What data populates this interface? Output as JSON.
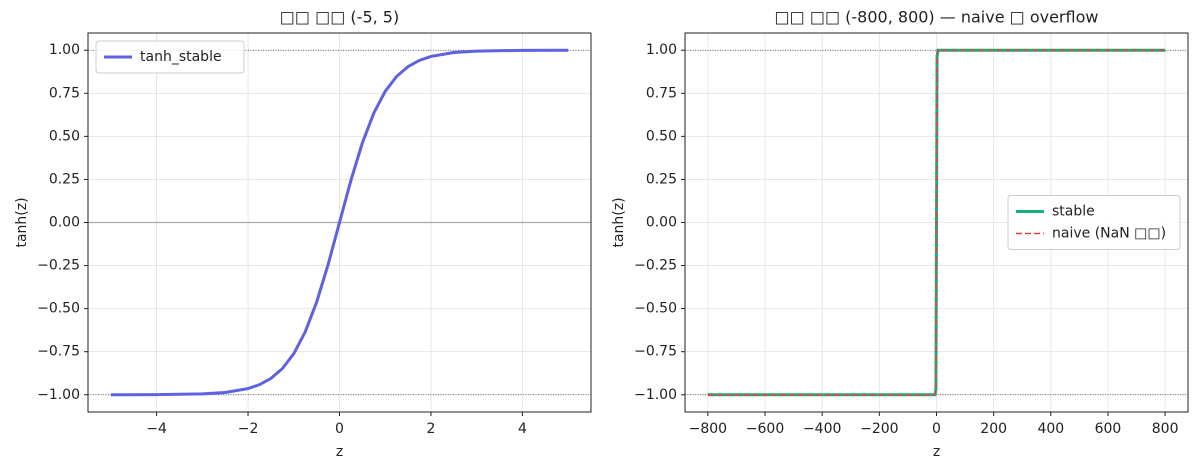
{
  "chart_data": [
    {
      "type": "line",
      "title": "□□ □□ (-5, 5)",
      "xlabel": "z",
      "ylabel": "tanh(z)",
      "x": [
        -5,
        -4,
        -3,
        -2.5,
        -2,
        -1.75,
        -1.5,
        -1.25,
        -1,
        -0.75,
        -0.5,
        -0.25,
        0,
        0.25,
        0.5,
        0.75,
        1,
        1.25,
        1.5,
        1.75,
        2,
        2.5,
        3,
        4,
        5
      ],
      "series": [
        {
          "name": "tanh_stable",
          "color": "#5d62e4",
          "linestyle": "solid",
          "values": [
            -0.9999,
            -0.9993,
            -0.9951,
            -0.9866,
            -0.964,
            -0.9414,
            -0.9051,
            -0.8483,
            -0.7616,
            -0.6351,
            -0.4621,
            -0.2449,
            0,
            0.2449,
            0.4621,
            0.6351,
            0.7616,
            0.8483,
            0.9051,
            0.9414,
            0.964,
            0.9866,
            0.9951,
            0.9993,
            0.9999
          ]
        }
      ],
      "xlim": [
        -5.5,
        5.5
      ],
      "ylim": [
        -1.1,
        1.1
      ],
      "xticks": [
        {
          "value": -4,
          "label": "−4"
        },
        {
          "value": -2,
          "label": "−2"
        },
        0,
        2,
        4
      ],
      "yticks": [
        {
          "value": -1,
          "label": "−1.00"
        },
        {
          "value": -0.75,
          "label": "−0.75"
        },
        {
          "value": -0.5,
          "label": "−0.50"
        },
        {
          "value": -0.25,
          "label": "−0.25"
        },
        {
          "value": 0,
          "label": "0.00"
        },
        {
          "value": 0.25,
          "label": "0.25"
        },
        {
          "value": 0.5,
          "label": "0.50"
        },
        {
          "value": 0.75,
          "label": "0.75"
        },
        {
          "value": 1,
          "label": "1.00"
        }
      ],
      "hlines": [
        {
          "y": 1,
          "style": "dotted"
        },
        {
          "y": -1,
          "style": "dotted"
        },
        {
          "y": 0,
          "style": "solid"
        }
      ],
      "grid": true,
      "legend": "upper left"
    },
    {
      "type": "line",
      "title": "□□ □□ (-800, 800) — naive □ overflow",
      "xlabel": "z",
      "ylabel": "tanh(z)",
      "x": [
        -800,
        -5,
        -2,
        0,
        2,
        5,
        800
      ],
      "series": [
        {
          "name": "stable",
          "color": "#17b07f",
          "linestyle": "solid",
          "values": [
            -1,
            -0.9999,
            -0.964,
            0,
            0.964,
            0.9999,
            1
          ]
        },
        {
          "name": "naive (NaN □□)",
          "color": "#e8413f",
          "linestyle": "dashed",
          "values": [
            -1,
            -0.9999,
            -0.964,
            0,
            0.964,
            0.9999,
            1
          ]
        }
      ],
      "xlim": [
        -880,
        880
      ],
      "ylim": [
        -1.1,
        1.1
      ],
      "xticks": [
        {
          "value": -800,
          "label": "−800"
        },
        {
          "value": -600,
          "label": "−600"
        },
        {
          "value": -400,
          "label": "−400"
        },
        {
          "value": -200,
          "label": "−200"
        },
        0,
        200,
        400,
        600,
        800
      ],
      "yticks": [
        {
          "value": -1,
          "label": "−1.00"
        },
        {
          "value": -0.75,
          "label": "−0.75"
        },
        {
          "value": -0.5,
          "label": "−0.50"
        },
        {
          "value": -0.25,
          "label": "−0.25"
        },
        {
          "value": 0,
          "label": "0.00"
        },
        {
          "value": 0.25,
          "label": "0.25"
        },
        {
          "value": 0.5,
          "label": "0.50"
        },
        {
          "value": 0.75,
          "label": "0.75"
        },
        {
          "value": 1,
          "label": "1.00"
        }
      ],
      "hlines": [
        {
          "y": 1,
          "style": "dotted"
        },
        {
          "y": -1,
          "style": "dotted"
        }
      ],
      "grid": true,
      "legend": "center right"
    }
  ]
}
